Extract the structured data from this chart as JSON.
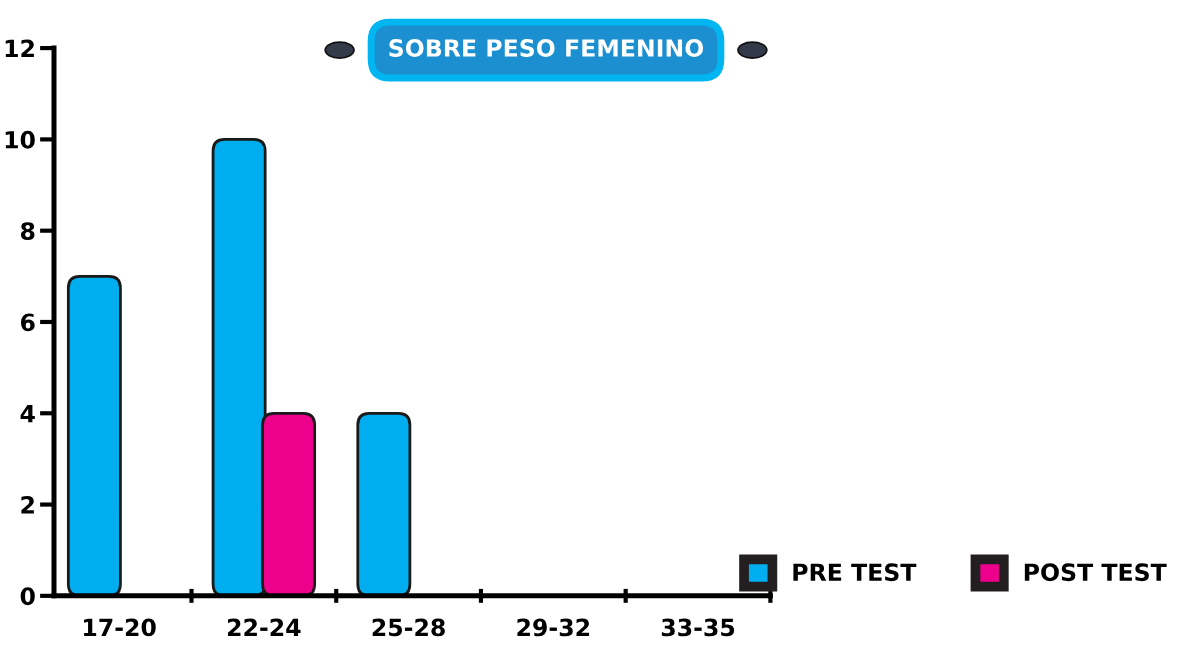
{
  "chart_data": {
    "type": "bar",
    "title": "SOBRE PESO FEMENINO",
    "categories": [
      "17-20",
      "22-24",
      "25-28",
      "29-32",
      "33-35"
    ],
    "series": [
      {
        "name": "PRE TEST",
        "color": "#00aeef",
        "values": [
          7,
          10,
          4,
          0,
          0
        ]
      },
      {
        "name": "POST TEST",
        "color": "#ec008c",
        "values": [
          0,
          4,
          0,
          0,
          0
        ]
      }
    ],
    "ylim": [
      0,
      12
    ],
    "yticks": [
      0,
      2,
      4,
      6,
      8,
      10,
      12
    ],
    "grid": false,
    "legend": "bottom right"
  }
}
